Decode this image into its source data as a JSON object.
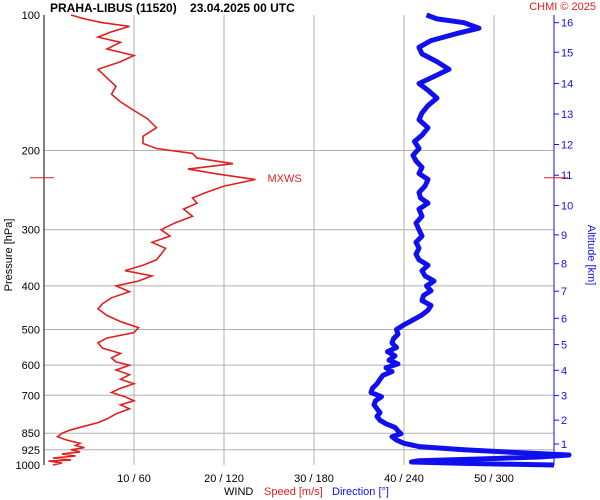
{
  "header": {
    "title": "PRAHA-LIBUS (11520)    23.04.2025 00 UTC",
    "credit": "CHMI © 2025"
  },
  "axes": {
    "left_label": "Pressure [hPa]",
    "right_label": "Altitude [km]",
    "bottom_wind": "WIND",
    "bottom_speed": "Speed [m/s]",
    "bottom_direction": "Direction [°]"
  },
  "annotation": {
    "text": "MXWS"
  },
  "colors": {
    "speed": "#e02020",
    "direction": "#1010ee",
    "grid": "#b0b0b0",
    "credit": "#e02020",
    "right_axis": "#1010ee"
  },
  "chart_data": {
    "type": "line",
    "title": "PRAHA-LIBUS (11520)    23.04.2025 00 UTC",
    "y_axis": {
      "label": "Pressure [hPa]",
      "scale": "log",
      "range": [
        1000,
        100
      ],
      "ticks": [
        100,
        200,
        300,
        400,
        500,
        600,
        700,
        850,
        925,
        1000
      ]
    },
    "right_axis": {
      "label": "Altitude [km]",
      "ticks": [
        "1",
        "2",
        "3",
        "4",
        "5",
        "6",
        "7",
        "8",
        "9",
        "10",
        "11",
        "12",
        "13",
        "14",
        "15",
        "16"
      ],
      "tick_pressures": [
        898,
        795,
        701,
        616,
        540,
        472,
        411,
        357,
        308,
        265,
        227,
        194,
        166,
        142,
        121,
        104
      ]
    },
    "x_axis": {
      "ticks": [
        "10 / 60",
        "20 / 120",
        "30 / 180",
        "40 / 240",
        "50 / 300"
      ],
      "speed_range": [
        0,
        60
      ],
      "direction_range": [
        0,
        360
      ]
    },
    "annotations": [
      {
        "text": "MXWS",
        "pressure": 230,
        "speed": 23.5
      }
    ],
    "series": [
      {
        "name": "Speed [m/s]",
        "axis": "speed",
        "points": [
          [
            1000,
            1.0
          ],
          [
            990,
            2.0
          ],
          [
            980,
            0.5
          ],
          [
            975,
            3.0
          ],
          [
            965,
            1.0
          ],
          [
            955,
            3.5
          ],
          [
            945,
            2.0
          ],
          [
            935,
            4.0
          ],
          [
            925,
            3.0
          ],
          [
            915,
            4.5
          ],
          [
            905,
            3.5
          ],
          [
            895,
            4.0
          ],
          [
            880,
            2.5
          ],
          [
            865,
            1.5
          ],
          [
            850,
            2.0
          ],
          [
            835,
            3.0
          ],
          [
            820,
            4.5
          ],
          [
            805,
            6.0
          ],
          [
            790,
            7.0
          ],
          [
            770,
            8.0
          ],
          [
            750,
            9.5
          ],
          [
            735,
            8.5
          ],
          [
            720,
            10.0
          ],
          [
            705,
            9.0
          ],
          [
            690,
            7.5
          ],
          [
            675,
            8.5
          ],
          [
            660,
            10.0
          ],
          [
            645,
            8.5
          ],
          [
            630,
            9.5
          ],
          [
            615,
            8.0
          ],
          [
            600,
            9.5
          ],
          [
            590,
            8.0
          ],
          [
            578,
            7.5
          ],
          [
            565,
            8.5
          ],
          [
            550,
            6.5
          ],
          [
            535,
            6.0
          ],
          [
            522,
            7.0
          ],
          [
            508,
            10.0
          ],
          [
            495,
            10.5
          ],
          [
            480,
            8.5
          ],
          [
            465,
            7.0
          ],
          [
            450,
            6.0
          ],
          [
            438,
            6.5
          ],
          [
            425,
            7.5
          ],
          [
            412,
            9.5
          ],
          [
            400,
            8.0
          ],
          [
            390,
            10.5
          ],
          [
            380,
            12.0
          ],
          [
            370,
            9.0
          ],
          [
            360,
            11.0
          ],
          [
            350,
            12.5
          ],
          [
            340,
            13.0
          ],
          [
            330,
            13.5
          ],
          [
            320,
            12.0
          ],
          [
            310,
            14.0
          ],
          [
            300,
            13.0
          ],
          [
            290,
            14.5
          ],
          [
            280,
            16.5
          ],
          [
            270,
            15.5
          ],
          [
            262,
            17.0
          ],
          [
            255,
            16.5
          ],
          [
            248,
            18.0
          ],
          [
            240,
            20.0
          ],
          [
            232,
            23.5
          ],
          [
            226,
            19.5
          ],
          [
            220,
            16.0
          ],
          [
            214,
            21.0
          ],
          [
            208,
            17.0
          ],
          [
            203,
            16.5
          ],
          [
            198,
            12.5
          ],
          [
            193,
            11.0
          ],
          [
            186,
            11.0
          ],
          [
            178,
            12.5
          ],
          [
            170,
            11.5
          ],
          [
            163,
            10.0
          ],
          [
            156,
            8.5
          ],
          [
            150,
            7.5
          ],
          [
            144,
            8.0
          ],
          [
            138,
            7.0
          ],
          [
            132,
            6.0
          ],
          [
            127,
            8.5
          ],
          [
            123,
            10.0
          ],
          [
            119,
            7.0
          ],
          [
            115,
            8.5
          ],
          [
            112,
            6.0
          ],
          [
            109,
            7.5
          ],
          [
            106,
            9.5
          ],
          [
            104,
            6.5
          ],
          [
            102,
            4.5
          ],
          [
            100,
            3.0
          ]
        ]
      },
      {
        "name": "Direction [°]",
        "axis": "direction",
        "points": [
          [
            1000,
            340
          ],
          [
            992,
            280
          ],
          [
            985,
            245
          ],
          [
            978,
            250
          ],
          [
            970,
            290
          ],
          [
            960,
            330
          ],
          [
            950,
            350
          ],
          [
            940,
            320
          ],
          [
            925,
            280
          ],
          [
            910,
            250
          ],
          [
            895,
            240
          ],
          [
            880,
            235
          ],
          [
            865,
            232
          ],
          [
            852,
            238
          ],
          [
            840,
            236
          ],
          [
            825,
            234
          ],
          [
            810,
            228
          ],
          [
            795,
            224
          ],
          [
            780,
            222
          ],
          [
            765,
            224
          ],
          [
            750,
            222
          ],
          [
            735,
            220
          ],
          [
            720,
            221
          ],
          [
            705,
            225
          ],
          [
            690,
            218
          ],
          [
            675,
            219
          ],
          [
            660,
            222
          ],
          [
            645,
            224
          ],
          [
            632,
            226
          ],
          [
            620,
            232
          ],
          [
            608,
            228
          ],
          [
            596,
            236
          ],
          [
            585,
            230
          ],
          [
            572,
            234
          ],
          [
            560,
            229
          ],
          [
            548,
            235
          ],
          [
            536,
            232
          ],
          [
            524,
            233
          ],
          [
            512,
            236
          ],
          [
            500,
            235
          ],
          [
            488,
            240
          ],
          [
            476,
            246
          ],
          [
            464,
            252
          ],
          [
            453,
            256
          ],
          [
            442,
            258
          ],
          [
            431,
            252
          ],
          [
            420,
            253
          ],
          [
            410,
            258
          ],
          [
            400,
            255
          ],
          [
            390,
            260
          ],
          [
            380,
            254
          ],
          [
            370,
            252
          ],
          [
            360,
            256
          ],
          [
            350,
            250
          ],
          [
            340,
            248
          ],
          [
            330,
            250
          ],
          [
            320,
            248
          ],
          [
            310,
            252
          ],
          [
            300,
            250
          ],
          [
            290,
            248
          ],
          [
            280,
            252
          ],
          [
            270,
            250
          ],
          [
            262,
            256
          ],
          [
            255,
            251
          ],
          [
            248,
            250
          ],
          [
            240,
            254
          ],
          [
            232,
            256
          ],
          [
            225,
            250
          ],
          [
            218,
            252
          ],
          [
            211,
            248
          ],
          [
            205,
            246
          ],
          [
            198,
            250
          ],
          [
            191,
            247
          ],
          [
            185,
            252
          ],
          [
            178,
            256
          ],
          [
            171,
            250
          ],
          [
            165,
            252
          ],
          [
            159,
            256
          ],
          [
            153,
            262
          ],
          [
            147,
            256
          ],
          [
            142,
            250
          ],
          [
            137,
            260
          ],
          [
            132,
            270
          ],
          [
            127,
            262
          ],
          [
            122,
            252
          ],
          [
            118,
            250
          ],
          [
            114,
            258
          ],
          [
            110,
            275
          ],
          [
            107,
            290
          ],
          [
            104,
            280
          ],
          [
            102,
            262
          ],
          [
            100,
            255
          ]
        ]
      }
    ]
  }
}
